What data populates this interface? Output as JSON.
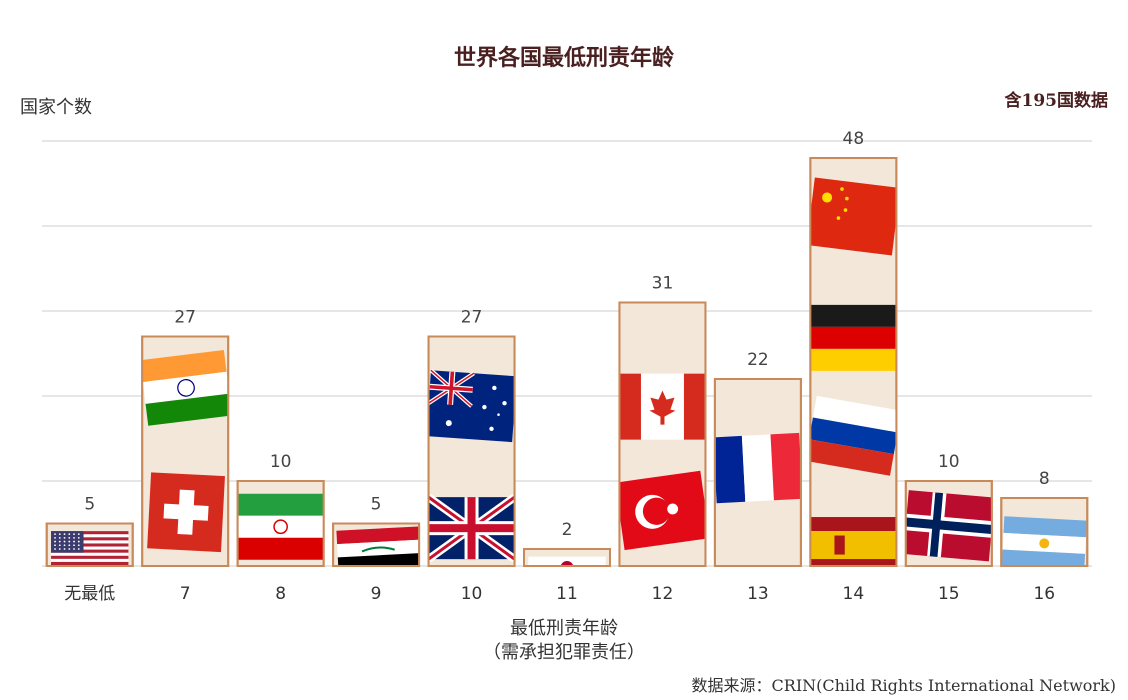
{
  "title": "世界各国最低刑责年龄",
  "note": "含195国数据",
  "source": "数据来源：CRIN(Child Rights International Network)",
  "colors": {
    "bar_fill": "#f3e7d9",
    "bar_stroke": "#c98a5a",
    "title": "#4a1f1f",
    "grid": "#d8d8d8"
  },
  "chart_data": {
    "type": "bar",
    "title": "世界各国最低刑责年龄",
    "xlabel": "最低刑责年龄",
    "xlabel_sub": "（需承担犯罪责任）",
    "ylabel": "国家个数",
    "categories": [
      "无最低",
      "7",
      "8",
      "9",
      "10",
      "11",
      "12",
      "13",
      "14",
      "15",
      "16"
    ],
    "values": [
      5,
      27,
      10,
      5,
      27,
      2,
      31,
      22,
      48,
      10,
      8
    ],
    "ylim": [
      0,
      50
    ],
    "grid": true,
    "legend": "none",
    "flag_icons": [
      [
        "usa-flag"
      ],
      [
        "india-flag",
        "switzerland-flag"
      ],
      [
        "iran-flag"
      ],
      [
        "iraq-flag"
      ],
      [
        "australia-flag",
        "uk-flag"
      ],
      [
        "japan-flag"
      ],
      [
        "canada-flag",
        "turkey-flag"
      ],
      [
        "france-flag"
      ],
      [
        "china-flag",
        "germany-flag",
        "russia-flag",
        "spain-flag"
      ],
      [
        "norway-flag"
      ],
      [
        "argentina-flag"
      ]
    ]
  }
}
